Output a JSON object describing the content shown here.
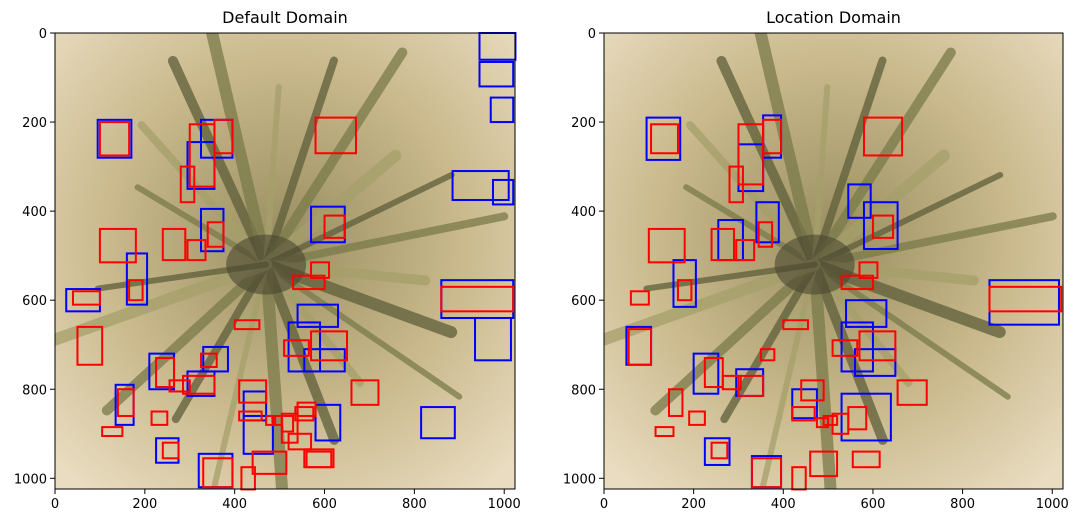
{
  "panels": [
    {
      "title": "Default Domain",
      "x_ticks": [
        "0",
        "200",
        "400",
        "600",
        "800",
        "1000"
      ],
      "y_ticks": [
        "0",
        "200",
        "400",
        "600",
        "800",
        "1000"
      ],
      "blue_boxes": [
        [
          945,
          0,
          1025,
          60
        ],
        [
          945,
          65,
          1020,
          120
        ],
        [
          970,
          145,
          1020,
          200
        ],
        [
          885,
          310,
          1010,
          375
        ],
        [
          975,
          330,
          1020,
          385
        ],
        [
          95,
          195,
          170,
          280
        ],
        [
          295,
          245,
          355,
          350
        ],
        [
          325,
          195,
          395,
          280
        ],
        [
          325,
          395,
          375,
          490
        ],
        [
          570,
          390,
          645,
          470
        ],
        [
          25,
          575,
          100,
          625
        ],
        [
          160,
          495,
          205,
          610
        ],
        [
          860,
          555,
          1020,
          640
        ],
        [
          935,
          640,
          1015,
          735
        ],
        [
          210,
          720,
          265,
          800
        ],
        [
          295,
          760,
          355,
          815
        ],
        [
          330,
          705,
          385,
          760
        ],
        [
          520,
          650,
          590,
          760
        ],
        [
          540,
          610,
          630,
          660
        ],
        [
          555,
          710,
          645,
          760
        ],
        [
          580,
          835,
          635,
          915
        ],
        [
          815,
          840,
          890,
          910
        ],
        [
          135,
          790,
          175,
          880
        ],
        [
          225,
          910,
          275,
          965
        ],
        [
          320,
          945,
          395,
          1020
        ],
        [
          420,
          805,
          470,
          870
        ],
        [
          420,
          860,
          485,
          945
        ]
      ],
      "red_boxes": [
        [
          100,
          200,
          165,
          275
        ],
        [
          300,
          205,
          355,
          345
        ],
        [
          355,
          195,
          395,
          270
        ],
        [
          580,
          190,
          670,
          270
        ],
        [
          280,
          300,
          310,
          380
        ],
        [
          600,
          410,
          645,
          460
        ],
        [
          240,
          440,
          290,
          510
        ],
        [
          295,
          465,
          335,
          510
        ],
        [
          340,
          425,
          375,
          480
        ],
        [
          100,
          440,
          180,
          515
        ],
        [
          40,
          580,
          100,
          610
        ],
        [
          165,
          555,
          195,
          600
        ],
        [
          530,
          545,
          600,
          575
        ],
        [
          570,
          515,
          610,
          550
        ],
        [
          400,
          645,
          455,
          665
        ],
        [
          860,
          570,
          1020,
          625
        ],
        [
          50,
          660,
          105,
          745
        ],
        [
          510,
          690,
          565,
          725
        ],
        [
          570,
          670,
          650,
          735
        ],
        [
          225,
          730,
          265,
          795
        ],
        [
          325,
          720,
          360,
          750
        ],
        [
          285,
          770,
          355,
          810
        ],
        [
          255,
          780,
          300,
          805
        ],
        [
          140,
          800,
          175,
          860
        ],
        [
          215,
          850,
          250,
          880
        ],
        [
          105,
          885,
          150,
          905
        ],
        [
          240,
          920,
          275,
          955
        ],
        [
          410,
          780,
          470,
          830
        ],
        [
          410,
          850,
          460,
          870
        ],
        [
          485,
          860,
          505,
          880
        ],
        [
          505,
          860,
          530,
          895
        ],
        [
          535,
          840,
          575,
          870
        ],
        [
          520,
          900,
          570,
          935
        ],
        [
          660,
          780,
          720,
          835
        ],
        [
          560,
          940,
          615,
          975
        ],
        [
          440,
          940,
          515,
          990
        ],
        [
          330,
          955,
          395,
          1020
        ],
        [
          415,
          975,
          445,
          1025
        ],
        [
          470,
          860,
          490,
          880
        ],
        [
          505,
          855,
          540,
          920
        ],
        [
          540,
          830,
          580,
          860
        ],
        [
          555,
          935,
          620,
          975
        ]
      ]
    },
    {
      "title": "Location Domain",
      "x_ticks": [
        "0",
        "200",
        "400",
        "600",
        "800",
        "1000"
      ],
      "y_ticks": [
        "0",
        "200",
        "400",
        "600",
        "800",
        "1000"
      ],
      "blue_boxes": [
        [
          95,
          190,
          170,
          285
        ],
        [
          300,
          250,
          355,
          355
        ],
        [
          355,
          185,
          395,
          280
        ],
        [
          545,
          340,
          595,
          415
        ],
        [
          580,
          380,
          655,
          485
        ],
        [
          340,
          380,
          390,
          470
        ],
        [
          255,
          420,
          310,
          510
        ],
        [
          155,
          510,
          205,
          615
        ],
        [
          860,
          555,
          1015,
          655
        ],
        [
          540,
          600,
          630,
          660
        ],
        [
          530,
          650,
          600,
          760
        ],
        [
          560,
          710,
          650,
          770
        ],
        [
          50,
          660,
          105,
          745
        ],
        [
          200,
          720,
          255,
          810
        ],
        [
          295,
          755,
          355,
          815
        ],
        [
          530,
          810,
          640,
          915
        ],
        [
          420,
          800,
          475,
          865
        ],
        [
          225,
          910,
          280,
          970
        ],
        [
          330,
          950,
          395,
          1020
        ]
      ],
      "red_boxes": [
        [
          105,
          205,
          165,
          270
        ],
        [
          300,
          205,
          355,
          340
        ],
        [
          355,
          195,
          395,
          270
        ],
        [
          580,
          190,
          665,
          275
        ],
        [
          280,
          300,
          310,
          380
        ],
        [
          600,
          410,
          645,
          460
        ],
        [
          240,
          440,
          290,
          510
        ],
        [
          295,
          465,
          335,
          510
        ],
        [
          345,
          425,
          375,
          480
        ],
        [
          100,
          440,
          180,
          515
        ],
        [
          60,
          580,
          100,
          610
        ],
        [
          165,
          555,
          195,
          600
        ],
        [
          530,
          545,
          600,
          575
        ],
        [
          570,
          515,
          610,
          550
        ],
        [
          400,
          645,
          455,
          665
        ],
        [
          860,
          570,
          1020,
          625
        ],
        [
          55,
          665,
          105,
          745
        ],
        [
          510,
          690,
          565,
          725
        ],
        [
          570,
          670,
          650,
          735
        ],
        [
          225,
          730,
          265,
          795
        ],
        [
          350,
          710,
          380,
          735
        ],
        [
          300,
          770,
          355,
          815
        ],
        [
          265,
          770,
          305,
          800
        ],
        [
          145,
          800,
          175,
          860
        ],
        [
          190,
          850,
          225,
          880
        ],
        [
          115,
          885,
          155,
          905
        ],
        [
          240,
          920,
          275,
          955
        ],
        [
          440,
          780,
          490,
          825
        ],
        [
          420,
          840,
          470,
          870
        ],
        [
          490,
          860,
          520,
          880
        ],
        [
          510,
          855,
          545,
          900
        ],
        [
          545,
          840,
          585,
          890
        ],
        [
          555,
          940,
          615,
          975
        ],
        [
          460,
          940,
          520,
          995
        ],
        [
          330,
          955,
          395,
          1020
        ],
        [
          420,
          975,
          450,
          1025
        ],
        [
          655,
          780,
          720,
          835
        ],
        [
          475,
          865,
          500,
          885
        ]
      ]
    }
  ]
}
